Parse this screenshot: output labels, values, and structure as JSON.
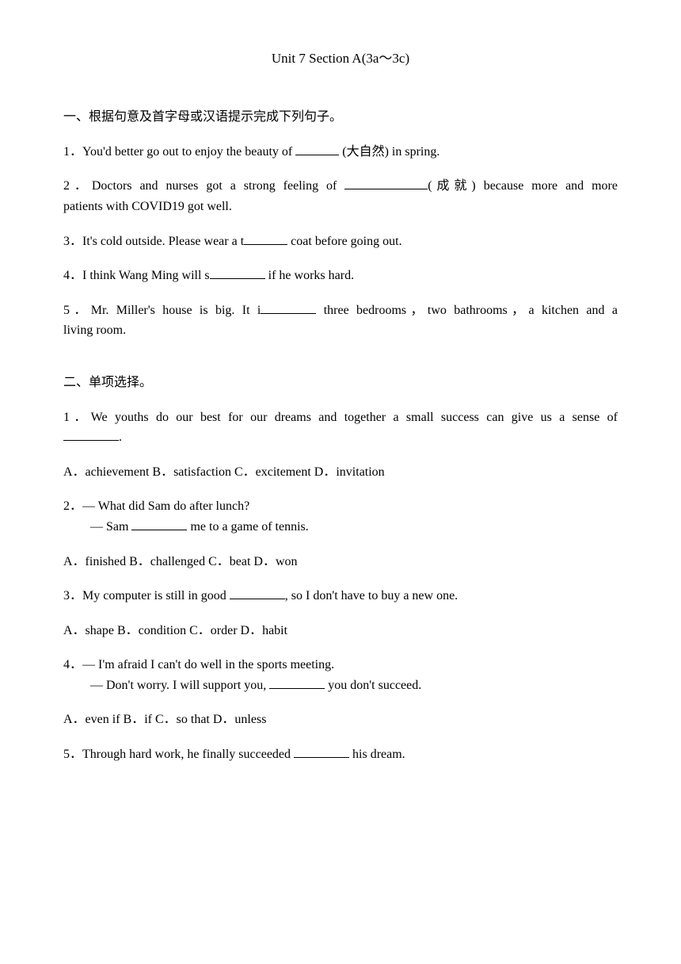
{
  "title": "Unit 7 Section A(3a～3c)",
  "section1": {
    "header": "一、根据句意及首字母或汉语提示完成下列句子。",
    "q1_pre": "1．You'd better go out to enjoy the beauty of ",
    "q1_post": " (大自然) in spring.",
    "q2_pre": "2．Doctors and nurses got a strong feeling of ",
    "q2_post": "(成就) because more and more",
    "q2_line2": "patients with COVID19 got well.",
    "q3_pre": "3．It's cold outside. Please wear a t",
    "q3_post": " coat before going out.",
    "q4_pre": "4．I think Wang Ming will s",
    "q4_post": " if he works hard.",
    "q5_pre": "5．Mr. Miller's house is big. It i",
    "q5_post": " three bedrooms，two bathrooms，a kitchen and a",
    "q5_line2": "living room."
  },
  "section2": {
    "header": "二、单项选择。",
    "q1_line1": "1．We youths do our best for our dreams and together a small success can give us a sense of",
    "q1_post": ".",
    "q1_options": "A．achievement        B．satisfaction        C．excitement        D．invitation",
    "q2_line1": "2．— What did Sam do after lunch?",
    "q2_line2_pre": "— Sam ",
    "q2_line2_post": " me to a game of tennis.",
    "q2_options": "A．finished      B．challenged      C．beat      D．won",
    "q3_pre": "3．My computer is still in good ",
    "q3_post": ", so I don't have to buy a new one.",
    "q3_options": "A．shape      B．condition      C．order      D．habit",
    "q4_line1": "4．— I'm afraid I can't do well in the sports meeting.",
    "q4_line2_pre": "— Don't worry. I will support you, ",
    "q4_line2_post": " you don't succeed.",
    "q4_options": "A．even if      B．if      C．so that      D．unless",
    "q5_pre": "5．Through hard work, he finally succeeded ",
    "q5_post": " his dream."
  }
}
